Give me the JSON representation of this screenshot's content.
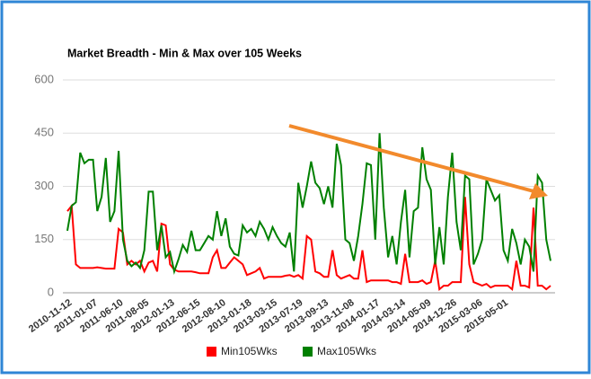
{
  "chart_data": {
    "type": "line",
    "title": "Market Breadth - Min & Max over 105 Weeks",
    "categories": [
      "2010-11-12",
      null,
      null,
      null,
      null,
      null,
      "2011-01-07",
      null,
      null,
      null,
      null,
      null,
      "2011-06-10",
      null,
      null,
      null,
      null,
      null,
      "2011-08-05",
      null,
      null,
      null,
      null,
      null,
      "2012-01-13",
      null,
      null,
      null,
      null,
      null,
      "2012-06-15",
      null,
      null,
      null,
      null,
      null,
      "2012-08-10",
      null,
      null,
      null,
      null,
      null,
      "2013-01-18",
      null,
      null,
      null,
      null,
      null,
      "2013-03-15",
      null,
      null,
      null,
      null,
      null,
      "2013-07-19",
      null,
      null,
      null,
      null,
      null,
      "2013-09-13",
      null,
      null,
      null,
      null,
      null,
      "2013-11-08",
      null,
      null,
      null,
      null,
      null,
      "2014-01-17",
      null,
      null,
      null,
      null,
      null,
      "2014-03-14",
      null,
      null,
      null,
      null,
      null,
      "2014-05-09",
      null,
      null,
      null,
      null,
      null,
      "2014-12-26",
      null,
      null,
      null,
      null,
      null,
      "2015-03-06",
      null,
      null,
      null,
      null,
      null,
      "2015-05-01",
      null,
      null,
      null,
      null,
      null,
      null,
      null,
      null,
      null,
      null,
      null
    ],
    "series": [
      {
        "name": "Min105Wks",
        "color": "#ff0000",
        "values": [
          230,
          245,
          80,
          70,
          70,
          70,
          70,
          72,
          70,
          68,
          68,
          68,
          180,
          170,
          80,
          90,
          80,
          90,
          60,
          85,
          90,
          60,
          195,
          190,
          80,
          65,
          60,
          60,
          60,
          60,
          58,
          55,
          55,
          55,
          100,
          120,
          70,
          70,
          85,
          100,
          90,
          80,
          50,
          55,
          60,
          70,
          40,
          45,
          45,
          45,
          45,
          48,
          50,
          45,
          50,
          40,
          160,
          150,
          60,
          55,
          45,
          45,
          120,
          50,
          40,
          45,
          50,
          40,
          40,
          120,
          30,
          35,
          35,
          35,
          35,
          35,
          30,
          30,
          25,
          110,
          30,
          30,
          30,
          35,
          25,
          30,
          90,
          10,
          20,
          20,
          30,
          30,
          30,
          270,
          80,
          30,
          25,
          20,
          25,
          15,
          20,
          20,
          20,
          20,
          10,
          90,
          20,
          20,
          15,
          240,
          20,
          20,
          10,
          20
        ]
      },
      {
        "name": "Max105Wks",
        "color": "#008000",
        "values": [
          175,
          245,
          255,
          395,
          365,
          375,
          375,
          230,
          270,
          380,
          200,
          230,
          400,
          150,
          90,
          75,
          85,
          70,
          120,
          285,
          285,
          120,
          190,
          100,
          115,
          60,
          95,
          135,
          115,
          175,
          120,
          120,
          140,
          160,
          150,
          230,
          160,
          210,
          130,
          110,
          105,
          190,
          170,
          180,
          160,
          200,
          180,
          150,
          185,
          160,
          140,
          130,
          170,
          60,
          310,
          240,
          300,
          370,
          310,
          295,
          250,
          300,
          240,
          420,
          360,
          150,
          140,
          90,
          160,
          250,
          365,
          360,
          150,
          450,
          240,
          100,
          160,
          80,
          200,
          290,
          100,
          230,
          240,
          410,
          320,
          290,
          80,
          185,
          80,
          270,
          395,
          200,
          120,
          330,
          320,
          80,
          110,
          150,
          320,
          290,
          260,
          275,
          120,
          90,
          180,
          140,
          80,
          150,
          130,
          60,
          330,
          310,
          150,
          90
        ]
      }
    ],
    "ylim": [
      0,
      600
    ],
    "yticks": [
      0,
      150,
      300,
      450,
      600
    ],
    "grid": true,
    "legend": "bottom"
  }
}
